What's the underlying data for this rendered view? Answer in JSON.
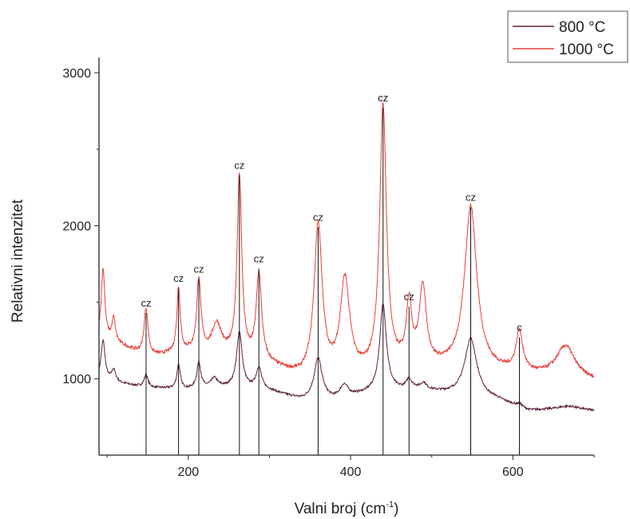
{
  "chart_data": {
    "type": "line",
    "title": "",
    "xlabel": "Valni broj (cm",
    "xlabel_sup": "-1",
    "xlabel_end": ")",
    "ylabel": "Relativni intenzitet",
    "xlim": [
      90,
      700
    ],
    "ylim": [
      500,
      3100
    ],
    "x_ticks": [
      200,
      400,
      600
    ],
    "y_ticks": [
      1000,
      2000,
      3000
    ],
    "grid": false,
    "legend_position": "top-right",
    "series": [
      {
        "name": "800 °C",
        "color": "#5e2040",
        "baseline": [
          [
            90,
            990
          ],
          [
            150,
            940
          ],
          [
            200,
            930
          ],
          [
            260,
            945
          ],
          [
            300,
            920
          ],
          [
            340,
            860
          ],
          [
            380,
            860
          ],
          [
            420,
            900
          ],
          [
            480,
            930
          ],
          [
            520,
            900
          ],
          [
            580,
            860
          ],
          [
            620,
            790
          ],
          [
            660,
            800
          ],
          [
            700,
            790
          ]
        ],
        "peaks": [
          [
            95,
            260,
            3
          ],
          [
            108,
            80,
            3
          ],
          [
            148,
            80,
            3
          ],
          [
            188,
            160,
            2.5
          ],
          [
            213,
            170,
            3
          ],
          [
            232,
            60,
            5
          ],
          [
            263,
            360,
            4
          ],
          [
            287,
            140,
            4
          ],
          [
            360,
            270,
            6
          ],
          [
            392,
            80,
            6
          ],
          [
            440,
            570,
            5
          ],
          [
            472,
            60,
            4
          ],
          [
            490,
            40,
            4
          ],
          [
            548,
            380,
            9
          ],
          [
            608,
            20,
            4
          ],
          [
            670,
            20,
            14
          ]
        ]
      },
      {
        "name": "1000 °C",
        "color": "#e8403a",
        "baseline": [
          [
            90,
            1280
          ],
          [
            150,
            1140
          ],
          [
            200,
            1170
          ],
          [
            240,
            1150
          ],
          [
            300,
            1080
          ],
          [
            340,
            1000
          ],
          [
            380,
            1000
          ],
          [
            420,
            1020
          ],
          [
            480,
            1080
          ],
          [
            520,
            1060
          ],
          [
            580,
            1040
          ],
          [
            620,
            1020
          ],
          [
            700,
            980
          ]
        ],
        "peaks": [
          [
            95,
            450,
            2.5
          ],
          [
            108,
            150,
            2.5
          ],
          [
            148,
            310,
            3
          ],
          [
            188,
            420,
            2.5
          ],
          [
            213,
            480,
            3
          ],
          [
            235,
            190,
            7
          ],
          [
            263,
            1180,
            3.5
          ],
          [
            287,
            570,
            4
          ],
          [
            360,
            990,
            6
          ],
          [
            393,
            620,
            7
          ],
          [
            440,
            1720,
            5
          ],
          [
            472,
            390,
            4
          ],
          [
            489,
            500,
            5
          ],
          [
            548,
            1070,
            9
          ],
          [
            608,
            260,
            5
          ],
          [
            665,
            210,
            14
          ]
        ]
      }
    ],
    "markers": [
      {
        "x": 148,
        "y_top": 1430,
        "label": "cz"
      },
      {
        "x": 188,
        "y_top": 1590,
        "label": "cz"
      },
      {
        "x": 213,
        "y_top": 1650,
        "label": "cz"
      },
      {
        "x": 263,
        "y_top": 2330,
        "label": "cz"
      },
      {
        "x": 287,
        "y_top": 1720,
        "label": "cz"
      },
      {
        "x": 360,
        "y_top": 1990,
        "label": "cz"
      },
      {
        "x": 440,
        "y_top": 2770,
        "label": "cz"
      },
      {
        "x": 472,
        "y_top": 1470,
        "label": "cz"
      },
      {
        "x": 548,
        "y_top": 2120,
        "label": "cz"
      },
      {
        "x": 608,
        "y_top": 1270,
        "label": "c"
      }
    ]
  }
}
